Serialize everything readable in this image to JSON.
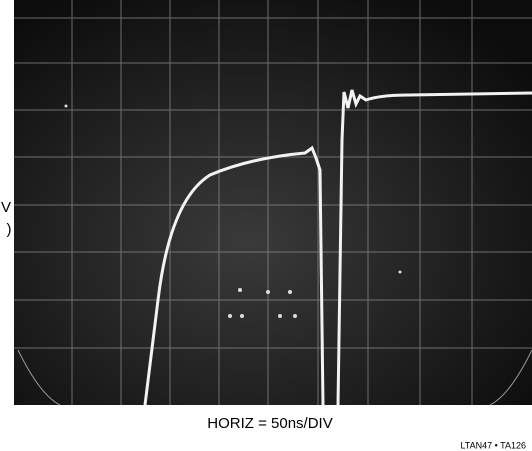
{
  "scope": {
    "side_label": [
      "V",
      ")"
    ]
  },
  "caption": "HORIZ = 50ns/DIV",
  "figure_id": "LTAN47 • TA126"
}
